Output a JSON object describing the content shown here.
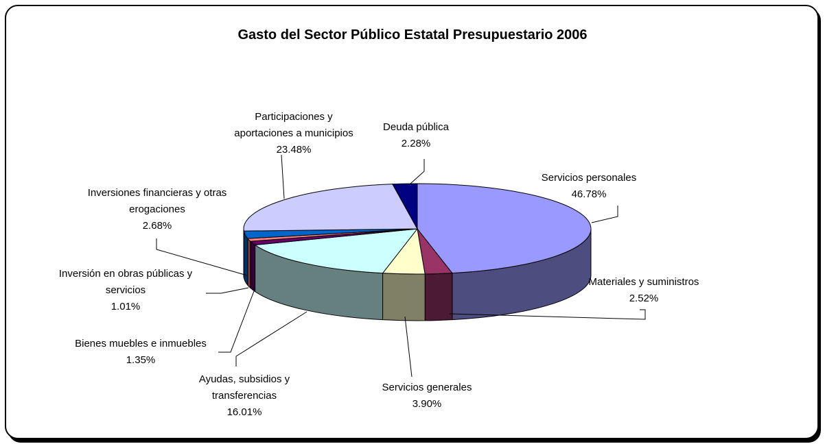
{
  "chart_data": {
    "type": "pie3d",
    "title": "Gasto del Sector Público Estatal Presupuestario 2006",
    "categories": [
      "Servicios personales",
      "Materiales y suministros",
      "Servicios generales",
      "Ayudas, subsidios y transferencias",
      "Bienes muebles e inmuebles",
      "Inversión en obras públicas y servicios",
      "Inversiones financieras y otras erogaciones",
      "Participaciones y aportaciones a municipios",
      "Deuda pública"
    ],
    "values": [
      46.78,
      2.52,
      3.9,
      16.01,
      1.35,
      1.01,
      2.68,
      23.48,
      2.28
    ],
    "value_labels": [
      "46.78%",
      "2.52%",
      "3.90%",
      "16.01%",
      "1.35%",
      "1.01%",
      "2.68%",
      "23.48%",
      "2.28%"
    ],
    "colors": [
      "#9999ff",
      "#993366",
      "#ffffcc",
      "#ccffff",
      "#660066",
      "#ff8080",
      "#0066cc",
      "#ccccff",
      "#000080"
    ]
  }
}
